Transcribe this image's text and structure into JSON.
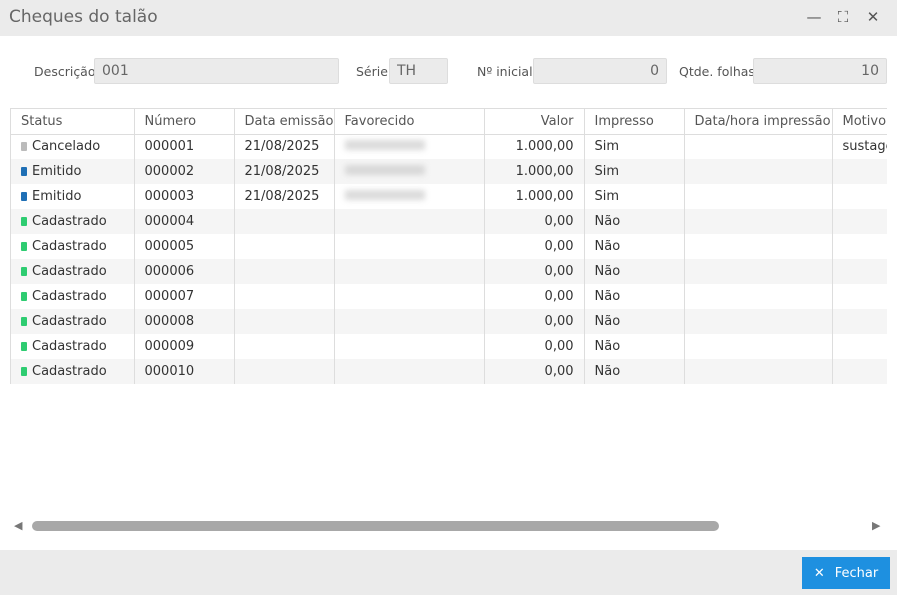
{
  "window": {
    "title": "Cheques do talão"
  },
  "form": {
    "descricao_label": "Descrição",
    "descricao": "001",
    "serie_label": "Série",
    "serie": "TH",
    "inicial_label": "Nº inicial",
    "inicial": "0",
    "qtde_label": "Qtde. folhas",
    "qtde": "10"
  },
  "columns": [
    "Status",
    "Número",
    "Data emissão",
    "Favorecido",
    "Valor",
    "Impresso",
    "Data/hora impressão",
    "Motivo"
  ],
  "status_colors": {
    "Cancelado": "#bbbbbb",
    "Emitido": "#1f6fb5",
    "Cadastrado": "#2ecc71"
  },
  "rows": [
    {
      "status": "Cancelado",
      "numero": "000001",
      "data": "21/08/2025",
      "valor": "1.000,00",
      "impresso": "Sim",
      "datahora": "",
      "motivo": "sustage"
    },
    {
      "status": "Emitido",
      "numero": "000002",
      "data": "21/08/2025",
      "valor": "1.000,00",
      "impresso": "Sim",
      "datahora": "",
      "motivo": ""
    },
    {
      "status": "Emitido",
      "numero": "000003",
      "data": "21/08/2025",
      "valor": "1.000,00",
      "impresso": "Sim",
      "datahora": "",
      "motivo": ""
    },
    {
      "status": "Cadastrado",
      "numero": "000004",
      "data": "",
      "valor": "0,00",
      "impresso": "Não",
      "datahora": "",
      "motivo": ""
    },
    {
      "status": "Cadastrado",
      "numero": "000005",
      "data": "",
      "valor": "0,00",
      "impresso": "Não",
      "datahora": "",
      "motivo": ""
    },
    {
      "status": "Cadastrado",
      "numero": "000006",
      "data": "",
      "valor": "0,00",
      "impresso": "Não",
      "datahora": "",
      "motivo": ""
    },
    {
      "status": "Cadastrado",
      "numero": "000007",
      "data": "",
      "valor": "0,00",
      "impresso": "Não",
      "datahora": "",
      "motivo": ""
    },
    {
      "status": "Cadastrado",
      "numero": "000008",
      "data": "",
      "valor": "0,00",
      "impresso": "Não",
      "datahora": "",
      "motivo": ""
    },
    {
      "status": "Cadastrado",
      "numero": "000009",
      "data": "",
      "valor": "0,00",
      "impresso": "Não",
      "datahora": "",
      "motivo": ""
    },
    {
      "status": "Cadastrado",
      "numero": "000010",
      "data": "",
      "valor": "0,00",
      "impresso": "Não",
      "datahora": "",
      "motivo": ""
    }
  ],
  "footer": {
    "close_label": "Fechar"
  }
}
